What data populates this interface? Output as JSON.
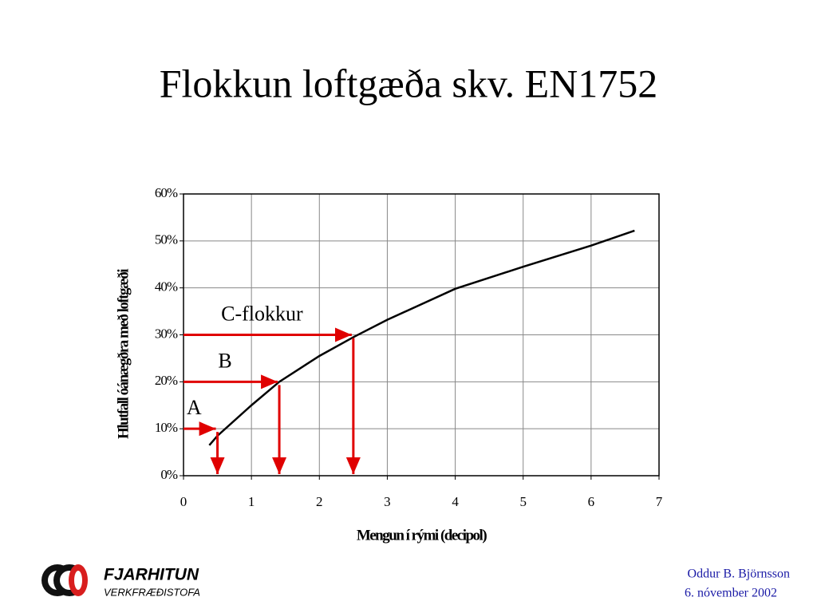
{
  "chart_data": {
    "type": "line",
    "title": "Flokkun loftgæða skv. EN1752",
    "y_label": "Hlutfall óánægðra með loftgæði",
    "x_label": "Mengun í rými (decipol)",
    "x": [
      0.38,
      0.5,
      1,
      1.41,
      2,
      2.5,
      3,
      4,
      5,
      6,
      6.64
    ],
    "values": [
      6.5,
      8.5,
      15,
      20,
      25.5,
      29.5,
      33.2,
      39.8,
      44.5,
      49,
      52.2
    ],
    "color": "#000000",
    "xlim": [
      0,
      7
    ],
    "xticks": [
      0,
      1,
      2,
      3,
      4,
      5,
      6,
      7
    ],
    "ylim": [
      0,
      60
    ],
    "yticks": [
      {
        "value": 0,
        "label": "0%"
      },
      {
        "value": 10,
        "label": "10%"
      },
      {
        "value": 20,
        "label": "20%"
      },
      {
        "value": 30,
        "label": "30%"
      },
      {
        "value": 40,
        "label": "40%"
      },
      {
        "value": 50,
        "label": "50%"
      },
      {
        "value": 60,
        "label": "60%"
      }
    ],
    "grid": true,
    "annotation_color": "#e00000",
    "annotations": [
      {
        "label": "A",
        "x": 0.5,
        "y": 10
      },
      {
        "label": "B",
        "x": 1.41,
        "y": 20
      },
      {
        "label": "C-flokkur",
        "x": 2.5,
        "y": 30
      }
    ]
  },
  "footer": {
    "logo_name": "FJARHITUN",
    "logo_sub": "VERKFRÆÐISTOFA",
    "author": "Oddur B. Björnsson",
    "date": "6. nóvember 2002"
  }
}
